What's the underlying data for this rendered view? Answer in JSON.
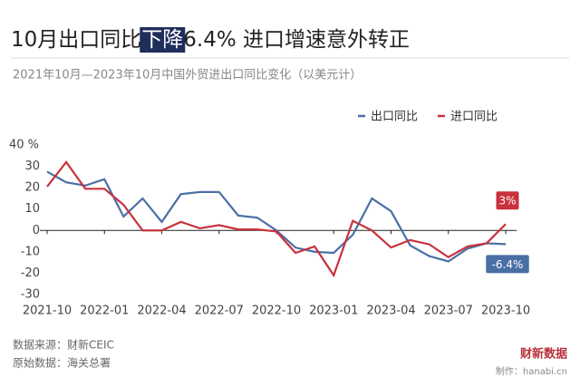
{
  "chart_data": {
    "type": "line",
    "title_parts": [
      "10月出口同比",
      "下降",
      "6.4% 进口增速意外转正"
    ],
    "subtitle": "2021年10月—2023年10月中国外贸进出口同比变化（以美元计）",
    "categories": [
      "2021-10",
      null,
      null,
      "2022-01",
      null,
      null,
      "2022-04",
      null,
      null,
      "2022-07",
      null,
      null,
      "2022-10",
      null,
      null,
      "2023-01",
      null,
      null,
      "2023-04",
      null,
      null,
      "2023-07",
      null,
      null,
      "2023-10"
    ],
    "series": [
      {
        "name": "出口同比",
        "color": "#4a6fa5",
        "values": [
          27.5,
          22.5,
          21,
          24,
          6.5,
          15,
          4,
          17,
          18,
          18,
          7,
          6,
          0,
          -8,
          -10,
          -10.5,
          -2,
          15,
          9,
          -7,
          -12,
          -14.5,
          -8.5,
          -6,
          -6.4
        ],
        "value_labels": [
          null,
          null,
          null,
          null,
          null,
          null,
          null,
          null,
          null,
          null,
          null,
          null,
          null,
          null,
          null,
          null,
          null,
          null,
          null,
          null,
          null,
          null,
          null,
          null,
          "-6.4%"
        ]
      },
      {
        "name": "进口同比",
        "color": "#c8323c",
        "values": [
          20.5,
          32,
          19.5,
          19.5,
          12,
          0,
          0,
          4,
          1,
          2.5,
          0.5,
          0.5,
          -0.5,
          -10.5,
          -7.5,
          -21,
          4.5,
          0,
          -8,
          -4.5,
          -6.5,
          -12.5,
          -7.5,
          -6,
          3
        ],
        "value_labels": [
          null,
          null,
          null,
          null,
          null,
          null,
          null,
          null,
          null,
          null,
          null,
          null,
          null,
          null,
          null,
          null,
          null,
          null,
          null,
          null,
          null,
          null,
          null,
          null,
          "3%"
        ]
      }
    ],
    "ylim": [
      -30,
      40
    ],
    "yticks": [
      -30,
      -20,
      -10,
      0,
      10,
      20,
      {
        "value": 40,
        "label": "40 %"
      },
      30
    ],
    "footer": [
      "数据来源：财新CEIC",
      "原始数据：海关总署"
    ],
    "brand": "财新数据",
    "credit": "制作：hanabi.cn"
  }
}
